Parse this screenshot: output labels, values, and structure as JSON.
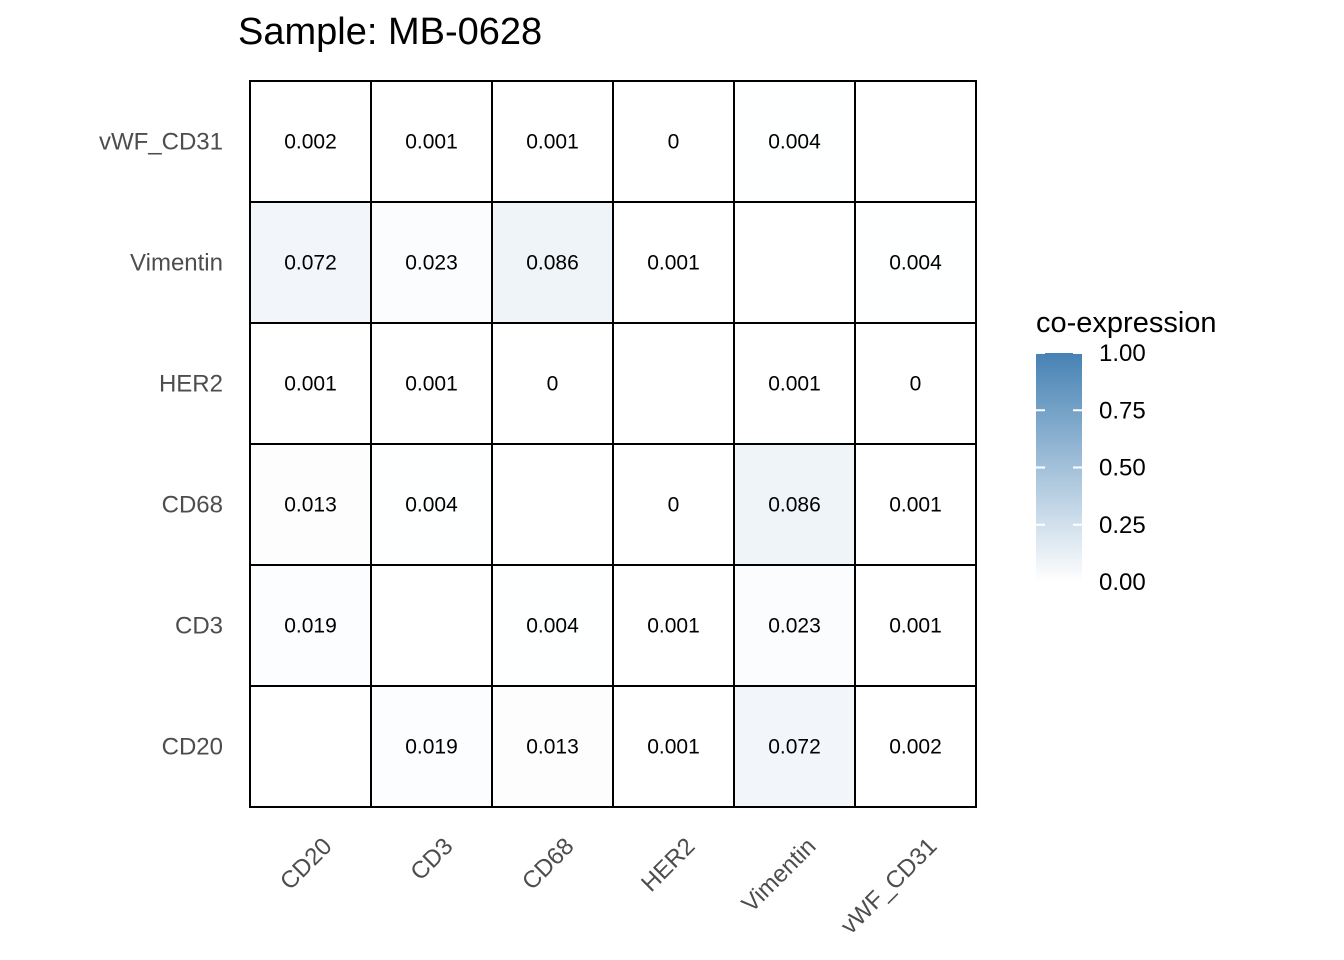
{
  "chart_data": {
    "type": "heatmap",
    "title": "Sample: MB-0628",
    "x_categories": [
      "CD20",
      "CD3",
      "CD68",
      "HER2",
      "Vimentin",
      "vWF_CD31"
    ],
    "y_categories": [
      "CD20",
      "CD3",
      "CD68",
      "HER2",
      "Vimentin",
      "vWF_CD31"
    ],
    "cells": [
      {
        "x": "CD3",
        "y": "CD20",
        "value": 0.019,
        "label": "0.019"
      },
      {
        "x": "CD68",
        "y": "CD20",
        "value": 0.013,
        "label": "0.013"
      },
      {
        "x": "HER2",
        "y": "CD20",
        "value": 0.001,
        "label": "0.001"
      },
      {
        "x": "Vimentin",
        "y": "CD20",
        "value": 0.072,
        "label": "0.072"
      },
      {
        "x": "vWF_CD31",
        "y": "CD20",
        "value": 0.002,
        "label": "0.002"
      },
      {
        "x": "CD20",
        "y": "CD3",
        "value": 0.019,
        "label": "0.019"
      },
      {
        "x": "CD68",
        "y": "CD3",
        "value": 0.004,
        "label": "0.004"
      },
      {
        "x": "HER2",
        "y": "CD3",
        "value": 0.001,
        "label": "0.001"
      },
      {
        "x": "Vimentin",
        "y": "CD3",
        "value": 0.023,
        "label": "0.023"
      },
      {
        "x": "vWF_CD31",
        "y": "CD3",
        "value": 0.001,
        "label": "0.001"
      },
      {
        "x": "CD20",
        "y": "CD68",
        "value": 0.013,
        "label": "0.013"
      },
      {
        "x": "CD3",
        "y": "CD68",
        "value": 0.004,
        "label": "0.004"
      },
      {
        "x": "HER2",
        "y": "CD68",
        "value": 0,
        "label": "0"
      },
      {
        "x": "Vimentin",
        "y": "CD68",
        "value": 0.086,
        "label": "0.086"
      },
      {
        "x": "vWF_CD31",
        "y": "CD68",
        "value": 0.001,
        "label": "0.001"
      },
      {
        "x": "CD20",
        "y": "HER2",
        "value": 0.001,
        "label": "0.001"
      },
      {
        "x": "CD3",
        "y": "HER2",
        "value": 0.001,
        "label": "0.001"
      },
      {
        "x": "CD68",
        "y": "HER2",
        "value": 0,
        "label": "0"
      },
      {
        "x": "Vimentin",
        "y": "HER2",
        "value": 0.001,
        "label": "0.001"
      },
      {
        "x": "vWF_CD31",
        "y": "HER2",
        "value": 0,
        "label": "0"
      },
      {
        "x": "CD20",
        "y": "Vimentin",
        "value": 0.072,
        "label": "0.072"
      },
      {
        "x": "CD3",
        "y": "Vimentin",
        "value": 0.023,
        "label": "0.023"
      },
      {
        "x": "CD68",
        "y": "Vimentin",
        "value": 0.086,
        "label": "0.086"
      },
      {
        "x": "HER2",
        "y": "Vimentin",
        "value": 0.001,
        "label": "0.001"
      },
      {
        "x": "vWF_CD31",
        "y": "Vimentin",
        "value": 0.004,
        "label": "0.004"
      },
      {
        "x": "CD20",
        "y": "vWF_CD31",
        "value": 0.002,
        "label": "0.002"
      },
      {
        "x": "CD3",
        "y": "vWF_CD31",
        "value": 0.001,
        "label": "0.001"
      },
      {
        "x": "CD68",
        "y": "vWF_CD31",
        "value": 0.001,
        "label": "0.001"
      },
      {
        "x": "HER2",
        "y": "vWF_CD31",
        "value": 0,
        "label": "0"
      },
      {
        "x": "Vimentin",
        "y": "vWF_CD31",
        "value": 0.004,
        "label": "0.004"
      }
    ],
    "legend": {
      "title": "co-expression",
      "range": [
        0,
        1
      ],
      "ticks": [
        0,
        0.25,
        0.5,
        0.75,
        1
      ],
      "tick_labels": [
        "0.00",
        "0.25",
        "0.50",
        "0.75",
        "1.00"
      ],
      "low_color": "#ffffff",
      "high_color": "#4682b4",
      "placement": "right"
    },
    "grid": false,
    "cell_border_color": "#000000"
  }
}
